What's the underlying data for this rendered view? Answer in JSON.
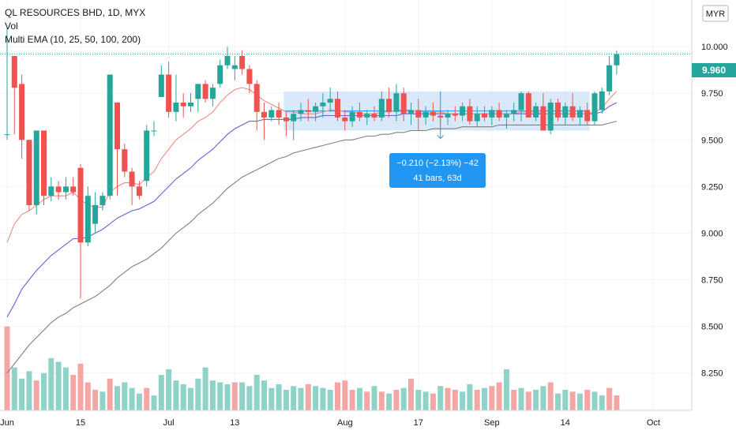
{
  "legend": {
    "title": "QL RESOURCES BHD, 1D, MYX",
    "vol": "Vol",
    "ema": "Multi EMA (10, 25, 50, 100, 200)"
  },
  "currency_badge": "MYR",
  "last_price_label": "9.960",
  "measure": {
    "line1": "−0.210 (−2.13%) −42",
    "line2": "41 bars, 63d"
  },
  "colors": {
    "up": "#26a69a",
    "down": "#ef5350",
    "up_vol": "#8fd3c8",
    "down_vol": "#f4a6a4",
    "ema10": "#f28b82",
    "ema25": "#6a5fd6",
    "ema50": "#808080",
    "measure_box": "#cfe3f7",
    "measure_label": "#2196f3",
    "price_line": "#26a69a"
  },
  "chart_data": {
    "type": "candlestick",
    "y_ticks": [
      "8.250",
      "8.500",
      "8.750",
      "9.000",
      "9.250",
      "9.500",
      "9.750",
      "10.000"
    ],
    "x_ticks": [
      {
        "label": "Jun",
        "index": 0
      },
      {
        "label": "15",
        "index": 10
      },
      {
        "label": "Jul",
        "index": 22
      },
      {
        "label": "13",
        "index": 31
      },
      {
        "label": "Aug",
        "index": 46
      },
      {
        "label": "17",
        "index": 56
      },
      {
        "label": "Sep",
        "index": 66
      },
      {
        "label": "14",
        "index": 76
      },
      {
        "label": "Oct",
        "index": 88
      }
    ],
    "ylim": [
      8.05,
      10.25
    ],
    "candles": [
      [
        9.53,
        10.1,
        9.5,
        9.53
      ],
      [
        9.95,
        9.95,
        9.53,
        9.78
      ],
      [
        9.8,
        9.85,
        9.4,
        9.5
      ],
      [
        9.5,
        9.5,
        9.12,
        9.15
      ],
      [
        9.15,
        9.55,
        9.1,
        9.55
      ],
      [
        9.55,
        9.55,
        9.15,
        9.2
      ],
      [
        9.2,
        9.3,
        9.17,
        9.25
      ],
      [
        9.25,
        9.28,
        9.18,
        9.22
      ],
      [
        9.22,
        9.3,
        9.18,
        9.25
      ],
      [
        9.25,
        9.3,
        9.2,
        9.22
      ],
      [
        9.35,
        9.37,
        8.65,
        8.95
      ],
      [
        8.95,
        9.25,
        8.93,
        9.2
      ],
      [
        9.05,
        9.22,
        9.0,
        9.15
      ],
      [
        9.15,
        9.22,
        9.12,
        9.2
      ],
      [
        9.2,
        9.85,
        9.18,
        9.85
      ],
      [
        9.7,
        9.7,
        9.2,
        9.45
      ],
      [
        9.45,
        9.48,
        9.3,
        9.33
      ],
      [
        9.33,
        9.35,
        9.15,
        9.25
      ],
      [
        9.25,
        9.28,
        9.18,
        9.2
      ],
      [
        9.28,
        9.58,
        9.25,
        9.55
      ],
      [
        9.55,
        9.6,
        9.52,
        9.55
      ],
      [
        9.73,
        9.9,
        9.73,
        9.85
      ],
      [
        9.85,
        9.92,
        9.62,
        9.65
      ],
      [
        9.65,
        9.85,
        9.6,
        9.7
      ],
      [
        9.7,
        9.75,
        9.62,
        9.68
      ],
      [
        9.68,
        9.75,
        9.65,
        9.7
      ],
      [
        9.72,
        9.8,
        9.65,
        9.8
      ],
      [
        9.8,
        9.82,
        9.7,
        9.72
      ],
      [
        9.72,
        9.8,
        9.68,
        9.78
      ],
      [
        9.8,
        9.93,
        9.78,
        9.9
      ],
      [
        9.9,
        10.0,
        9.88,
        9.95
      ],
      [
        9.88,
        9.95,
        9.82,
        9.9
      ],
      [
        9.95,
        9.98,
        9.85,
        9.88
      ],
      [
        9.88,
        9.9,
        9.75,
        9.8
      ],
      [
        9.8,
        9.82,
        9.55,
        9.65
      ],
      [
        9.65,
        9.7,
        9.5,
        9.62
      ],
      [
        9.62,
        9.68,
        9.6,
        9.66
      ],
      [
        9.66,
        9.7,
        9.58,
        9.62
      ],
      [
        9.62,
        9.65,
        9.52,
        9.6
      ],
      [
        9.6,
        9.66,
        9.5,
        9.64
      ],
      [
        9.64,
        9.7,
        9.6,
        9.66
      ],
      [
        9.66,
        9.72,
        9.6,
        9.65
      ],
      [
        9.65,
        9.7,
        9.6,
        9.68
      ],
      [
        9.68,
        9.75,
        9.62,
        9.7
      ],
      [
        9.7,
        9.78,
        9.65,
        9.72
      ],
      [
        9.72,
        9.76,
        9.6,
        9.62
      ],
      [
        9.62,
        9.66,
        9.55,
        9.6
      ],
      [
        9.6,
        9.68,
        9.57,
        9.65
      ],
      [
        9.65,
        9.7,
        9.6,
        9.62
      ],
      [
        9.62,
        9.66,
        9.58,
        9.64
      ],
      [
        9.64,
        9.68,
        9.6,
        9.62
      ],
      [
        9.62,
        9.76,
        9.6,
        9.72
      ],
      [
        9.72,
        9.78,
        9.62,
        9.65
      ],
      [
        9.65,
        9.8,
        9.6,
        9.75
      ],
      [
        9.75,
        9.78,
        9.6,
        9.64
      ],
      [
        9.64,
        9.7,
        9.58,
        9.66
      ],
      [
        9.66,
        9.72,
        9.55,
        9.62
      ],
      [
        9.62,
        9.68,
        9.58,
        9.65
      ],
      [
        9.65,
        9.7,
        9.6,
        9.63
      ],
      [
        9.63,
        9.66,
        9.58,
        9.62
      ],
      [
        9.62,
        9.66,
        9.58,
        9.64
      ],
      [
        9.64,
        9.68,
        9.6,
        9.63
      ],
      [
        9.63,
        9.7,
        9.6,
        9.68
      ],
      [
        9.68,
        9.72,
        9.58,
        9.6
      ],
      [
        9.6,
        9.68,
        9.57,
        9.64
      ],
      [
        9.64,
        9.68,
        9.6,
        9.62
      ],
      [
        9.62,
        9.68,
        9.58,
        9.66
      ],
      [
        9.66,
        9.7,
        9.6,
        9.62
      ],
      [
        9.62,
        9.66,
        9.56,
        9.64
      ],
      [
        9.64,
        9.7,
        9.6,
        9.66
      ],
      [
        9.66,
        9.76,
        9.6,
        9.75
      ],
      [
        9.75,
        9.76,
        9.62,
        9.62
      ],
      [
        9.62,
        9.7,
        9.6,
        9.68
      ],
      [
        9.68,
        9.75,
        9.55,
        9.55
      ],
      [
        9.55,
        9.72,
        9.53,
        9.7
      ],
      [
        9.7,
        9.72,
        9.6,
        9.62
      ],
      [
        9.62,
        9.7,
        9.58,
        9.68
      ],
      [
        9.68,
        9.75,
        9.6,
        9.62
      ],
      [
        9.62,
        9.68,
        9.58,
        9.66
      ],
      [
        9.66,
        9.7,
        9.58,
        9.6
      ],
      [
        9.6,
        9.76,
        9.58,
        9.75
      ],
      [
        9.66,
        9.78,
        9.64,
        9.76
      ],
      [
        9.76,
        9.95,
        9.74,
        9.9
      ],
      [
        9.9,
        9.98,
        9.85,
        9.96
      ]
    ],
    "volume": [
      [
        8.5,
        0
      ],
      [
        8.28,
        1
      ],
      [
        8.22,
        1
      ],
      [
        8.26,
        1
      ],
      [
        8.21,
        0
      ],
      [
        8.25,
        1
      ],
      [
        8.33,
        1
      ],
      [
        8.31,
        1
      ],
      [
        8.28,
        1
      ],
      [
        8.24,
        0
      ],
      [
        8.3,
        0
      ],
      [
        8.2,
        0
      ],
      [
        8.16,
        0
      ],
      [
        8.15,
        1
      ],
      [
        8.22,
        0
      ],
      [
        8.18,
        1
      ],
      [
        8.2,
        1
      ],
      [
        8.17,
        1
      ],
      [
        8.14,
        1
      ],
      [
        8.17,
        0
      ],
      [
        8.13,
        1
      ],
      [
        8.24,
        1
      ],
      [
        8.27,
        1
      ],
      [
        8.21,
        1
      ],
      [
        8.19,
        1
      ],
      [
        8.17,
        1
      ],
      [
        8.22,
        1
      ],
      [
        8.28,
        1
      ],
      [
        8.21,
        1
      ],
      [
        8.2,
        1
      ],
      [
        8.19,
        1
      ],
      [
        8.2,
        0
      ],
      [
        8.2,
        1
      ],
      [
        8.18,
        1
      ],
      [
        8.24,
        1
      ],
      [
        8.21,
        1
      ],
      [
        8.17,
        1
      ],
      [
        8.19,
        1
      ],
      [
        8.16,
        1
      ],
      [
        8.18,
        1
      ],
      [
        8.17,
        1
      ],
      [
        8.19,
        0
      ],
      [
        8.18,
        1
      ],
      [
        8.17,
        1
      ],
      [
        8.16,
        1
      ],
      [
        8.2,
        0
      ],
      [
        8.21,
        0
      ],
      [
        8.16,
        0
      ],
      [
        8.17,
        1
      ],
      [
        8.15,
        0
      ],
      [
        8.18,
        1
      ],
      [
        8.15,
        0
      ],
      [
        8.14,
        1
      ],
      [
        8.16,
        0
      ],
      [
        8.17,
        1
      ],
      [
        8.22,
        0
      ],
      [
        8.16,
        1
      ],
      [
        8.15,
        1
      ],
      [
        8.14,
        0
      ],
      [
        8.18,
        1
      ],
      [
        8.17,
        0
      ],
      [
        8.16,
        0
      ],
      [
        8.15,
        1
      ],
      [
        8.19,
        1
      ],
      [
        8.16,
        0
      ],
      [
        8.17,
        1
      ],
      [
        8.18,
        0
      ],
      [
        8.2,
        0
      ],
      [
        8.27,
        1
      ],
      [
        8.16,
        0
      ],
      [
        8.17,
        1
      ],
      [
        8.15,
        0
      ],
      [
        8.16,
        1
      ],
      [
        8.18,
        1
      ],
      [
        8.2,
        0
      ],
      [
        8.14,
        1
      ],
      [
        8.16,
        1
      ],
      [
        8.15,
        0
      ],
      [
        8.14,
        1
      ],
      [
        8.16,
        0
      ],
      [
        8.15,
        1
      ],
      [
        8.13,
        1
      ],
      [
        8.17,
        0
      ],
      [
        8.13,
        0
      ]
    ],
    "ema10": [
      8.95,
      9.05,
      9.1,
      9.12,
      9.15,
      9.18,
      9.2,
      9.2,
      9.2,
      9.22,
      9.18,
      9.15,
      9.14,
      9.14,
      9.22,
      9.25,
      9.27,
      9.27,
      9.26,
      9.3,
      9.33,
      9.4,
      9.45,
      9.5,
      9.53,
      9.56,
      9.6,
      9.62,
      9.65,
      9.7,
      9.74,
      9.77,
      9.78,
      9.77,
      9.74,
      9.71,
      9.69,
      9.67,
      9.65,
      9.65,
      9.64,
      9.64,
      9.64,
      9.65,
      9.66,
      9.66,
      9.65,
      9.65,
      9.64,
      9.64,
      9.64,
      9.65,
      9.65,
      9.66,
      9.66,
      9.66,
      9.65,
      9.65,
      9.65,
      9.65,
      9.64,
      9.64,
      9.64,
      9.64,
      9.64,
      9.64,
      9.64,
      9.64,
      9.64,
      9.64,
      9.65,
      9.65,
      9.65,
      9.64,
      9.64,
      9.64,
      9.64,
      9.64,
      9.64,
      9.64,
      9.65,
      9.67,
      9.72,
      9.76
    ],
    "ema25": [
      8.55,
      8.62,
      8.7,
      8.75,
      8.8,
      8.84,
      8.88,
      8.91,
      8.94,
      8.97,
      8.97,
      8.98,
      9.0,
      9.02,
      9.05,
      9.08,
      9.1,
      9.12,
      9.13,
      9.15,
      9.17,
      9.21,
      9.25,
      9.29,
      9.32,
      9.35,
      9.39,
      9.42,
      9.45,
      9.49,
      9.53,
      9.56,
      9.58,
      9.6,
      9.6,
      9.61,
      9.61,
      9.61,
      9.61,
      9.61,
      9.62,
      9.62,
      9.62,
      9.63,
      9.63,
      9.63,
      9.63,
      9.63,
      9.63,
      9.63,
      9.63,
      9.63,
      9.63,
      9.63,
      9.64,
      9.64,
      9.64,
      9.64,
      9.64,
      9.64,
      9.64,
      9.64,
      9.64,
      9.64,
      9.64,
      9.64,
      9.64,
      9.64,
      9.64,
      9.64,
      9.64,
      9.64,
      9.64,
      9.64,
      9.64,
      9.64,
      9.64,
      9.64,
      9.64,
      9.64,
      9.64,
      9.65,
      9.68,
      9.7
    ],
    "ema50": [
      8.25,
      8.3,
      8.35,
      8.4,
      8.44,
      8.48,
      8.52,
      8.55,
      8.57,
      8.6,
      8.62,
      8.64,
      8.66,
      8.69,
      8.72,
      8.76,
      8.79,
      8.82,
      8.84,
      8.86,
      8.89,
      8.92,
      8.96,
      9.0,
      9.03,
      9.06,
      9.1,
      9.13,
      9.16,
      9.2,
      9.24,
      9.27,
      9.3,
      9.32,
      9.34,
      9.36,
      9.38,
      9.4,
      9.41,
      9.43,
      9.44,
      9.45,
      9.46,
      9.47,
      9.48,
      9.49,
      9.5,
      9.5,
      9.51,
      9.52,
      9.52,
      9.53,
      9.53,
      9.54,
      9.54,
      9.55,
      9.55,
      9.55,
      9.56,
      9.56,
      9.56,
      9.56,
      9.57,
      9.57,
      9.57,
      9.57,
      9.57,
      9.58,
      9.58,
      9.58,
      9.58,
      9.58,
      9.58,
      9.58,
      9.58,
      9.58,
      9.58,
      9.58,
      9.58,
      9.58,
      9.58,
      9.58,
      9.59,
      9.6
    ],
    "measure_range": {
      "start_index": 38,
      "end_index": 79,
      "high": 9.76,
      "low": 9.55
    },
    "last_price": 9.96
  }
}
